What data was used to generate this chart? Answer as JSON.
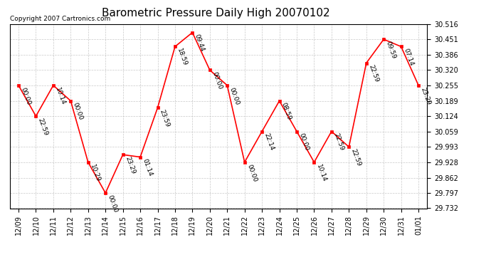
{
  "title": "Barometric Pressure Daily High 20070102",
  "copyright": "Copyright 2007 Cartronics.com",
  "x_labels": [
    "12/09",
    "12/10",
    "12/11",
    "12/12",
    "12/13",
    "12/14",
    "12/15",
    "12/16",
    "12/17",
    "12/18",
    "12/19",
    "12/20",
    "12/21",
    "12/22",
    "12/23",
    "12/24",
    "12/25",
    "12/26",
    "12/27",
    "12/28",
    "12/29",
    "12/30",
    "12/31",
    "01/01"
  ],
  "y_values": [
    30.255,
    30.124,
    30.255,
    30.189,
    29.928,
    29.797,
    29.96,
    29.95,
    30.16,
    30.42,
    30.48,
    30.32,
    30.255,
    29.928,
    30.059,
    30.189,
    30.059,
    29.928,
    30.059,
    29.993,
    30.35,
    30.451,
    30.42,
    30.255
  ],
  "point_labels": [
    "00:00",
    "22:59",
    "10:14",
    "00:00",
    "10:29",
    "00:00",
    "23:29",
    "01:14",
    "23:59",
    "18:59",
    "09:44",
    "00:00",
    "00:00",
    "00:00",
    "22:14",
    "08:59",
    "00:00",
    "10:14",
    "22:59",
    "22:59",
    "22:59",
    "09:59",
    "07:14",
    "23:29"
  ],
  "ylim_min": 29.732,
  "ylim_max": 30.516,
  "y_ticks": [
    29.732,
    29.797,
    29.862,
    29.928,
    29.993,
    30.059,
    30.124,
    30.189,
    30.255,
    30.32,
    30.386,
    30.451,
    30.516
  ],
  "line_color": "red",
  "marker_color": "red",
  "marker_face": "red",
  "bg_color": "#ffffff",
  "grid_color": "#bbbbbb",
  "title_fontsize": 11,
  "label_fontsize": 6.5,
  "tick_fontsize": 7,
  "copyright_fontsize": 6.5
}
